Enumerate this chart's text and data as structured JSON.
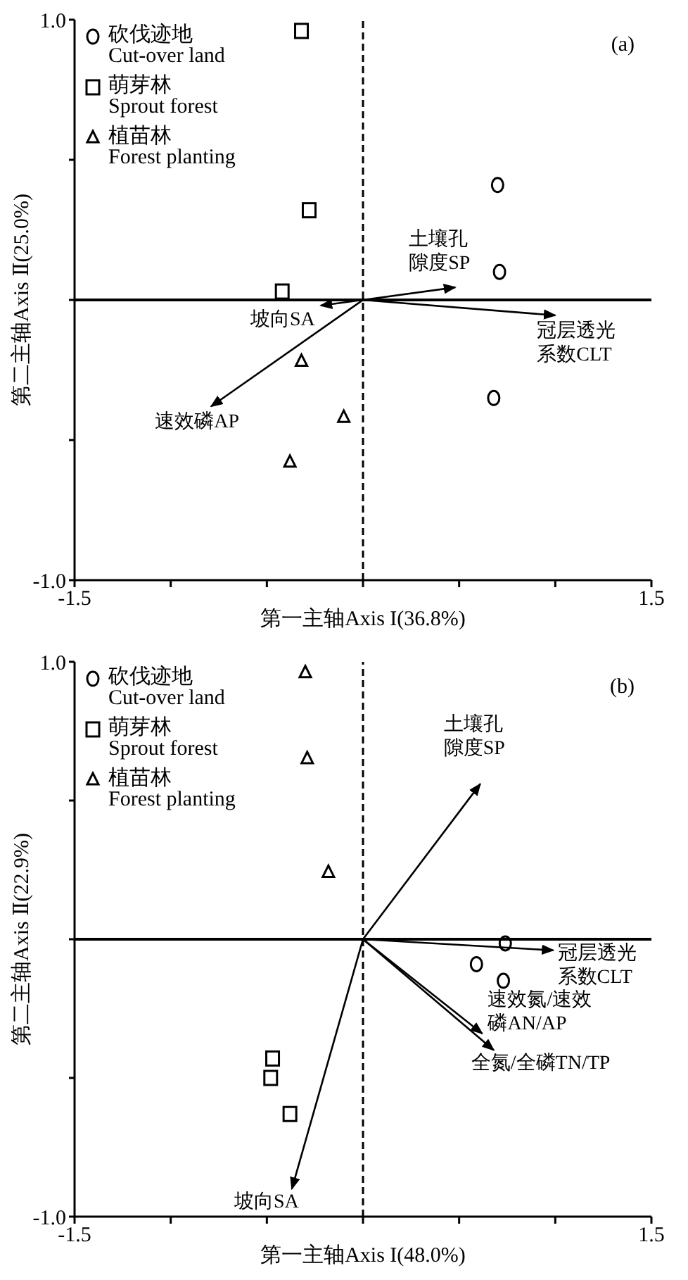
{
  "chart_data": [
    {
      "type": "scatter",
      "xlabel": "第一主轴Axis I(36.8%)",
      "ylabel": "第二主轴Axis Ⅱ(25.0%)",
      "annotations": [
        "(a)"
      ],
      "xlim": [
        -1.5,
        1.5
      ],
      "ylim": [
        -1.0,
        1.0
      ],
      "xticks": [
        {
          "value": -1.5,
          "label": "-1.5"
        },
        {
          "value": -1,
          "label": null
        },
        {
          "value": -0.5,
          "label": null
        },
        {
          "value": 0,
          "label": null
        },
        {
          "value": 0.5,
          "label": null
        },
        {
          "value": 1,
          "label": null
        },
        {
          "value": 1.5,
          "label": "1.5"
        }
      ],
      "yticks": [
        {
          "value": -1,
          "label": "-1.0"
        },
        {
          "value": -0.5,
          "label": null
        },
        {
          "value": 0,
          "label": null
        },
        {
          "value": 0.5,
          "label": null
        },
        {
          "value": 1,
          "label": "1.0"
        }
      ],
      "legend": "top left",
      "ref_lines": [
        {
          "axis": "x",
          "value": 0,
          "line_style": "dashed",
          "color": "#000000"
        },
        {
          "axis": "y",
          "value": 0,
          "line_style": "solid",
          "color": "#000000"
        }
      ],
      "series": [
        {
          "name": "砍伐迹地\nCut-over land",
          "color": "#000000",
          "marker": "circle",
          "x": [
            0.7,
            0.71,
            0.68
          ],
          "values": [
            0.41,
            0.1,
            -0.35
          ]
        },
        {
          "name": "萌芽林\nSprout forest",
          "color": "#000000",
          "marker": "square",
          "x": [
            -0.32,
            -0.28,
            -0.42
          ],
          "values": [
            0.96,
            0.32,
            0.03
          ]
        },
        {
          "name": "植苗林\nForest planting",
          "color": "#000000",
          "marker": "triangle",
          "x": [
            -0.32,
            -0.1,
            -0.38
          ],
          "values": [
            -0.22,
            -0.42,
            -0.58
          ]
        },
        {
          "type": "line",
          "name": "土壤孔隙度SP",
          "color": "#000000",
          "x": [
            0,
            0.48
          ],
          "values": [
            0,
            0.045
          ]
        },
        {
          "type": "line",
          "name": "冠层透光系数CLT",
          "color": "#000000",
          "x": [
            0,
            1.0
          ],
          "values": [
            0,
            -0.055
          ]
        },
        {
          "type": "line",
          "name": "坡向SA",
          "color": "#000000",
          "x": [
            0,
            -0.22
          ],
          "values": [
            0,
            -0.02
          ]
        },
        {
          "type": "line",
          "name": "速效磷AP",
          "color": "#000000",
          "x": [
            0,
            -0.79
          ],
          "values": [
            0,
            -0.38
          ]
        }
      ]
    },
    {
      "type": "scatter",
      "xlabel": "第一主轴Axis I(48.0%)",
      "ylabel": "第二主轴Axis Ⅱ(22.9%)",
      "annotations": [
        "(b)"
      ],
      "xlim": [
        -1.5,
        1.5
      ],
      "ylim": [
        -1.0,
        1.0
      ],
      "xticks": [
        {
          "value": -1.5,
          "label": "-1.5"
        },
        {
          "value": -1,
          "label": null
        },
        {
          "value": -0.5,
          "label": null
        },
        {
          "value": 0,
          "label": null
        },
        {
          "value": 0.5,
          "label": null
        },
        {
          "value": 1,
          "label": null
        },
        {
          "value": 1.5,
          "label": "1.5"
        }
      ],
      "yticks": [
        {
          "value": -1,
          "label": "-1.0"
        },
        {
          "value": -0.5,
          "label": null
        },
        {
          "value": 0,
          "label": null
        },
        {
          "value": 0.5,
          "label": null
        },
        {
          "value": 1,
          "label": "1.0"
        }
      ],
      "legend": "top left",
      "ref_lines": [
        {
          "axis": "x",
          "value": 0,
          "line_style": "dashed",
          "color": "#000000"
        },
        {
          "axis": "y",
          "value": 0,
          "line_style": "solid",
          "color": "#000000"
        }
      ],
      "series": [
        {
          "name": "砍伐迹地\nCut-over land",
          "color": "#000000",
          "marker": "circle",
          "x": [
            0.74,
            0.59,
            0.73
          ],
          "values": [
            -0.015,
            -0.09,
            -0.15
          ]
        },
        {
          "name": "萌芽林\nSprout forest",
          "color": "#000000",
          "marker": "square",
          "x": [
            -0.47,
            -0.48,
            -0.38
          ],
          "values": [
            -0.43,
            -0.5,
            -0.63
          ]
        },
        {
          "name": "植苗林\nForest planting",
          "color": "#000000",
          "marker": "triangle",
          "x": [
            -0.3,
            -0.29,
            -0.18
          ],
          "values": [
            0.96,
            0.65,
            0.24
          ]
        },
        {
          "type": "line",
          "name": "土壤孔隙度SP",
          "color": "#000000",
          "x": [
            0,
            0.61
          ],
          "values": [
            0,
            0.56
          ]
        },
        {
          "type": "line",
          "name": "冠层透光系数CLT",
          "color": "#000000",
          "x": [
            0,
            0.99
          ],
          "values": [
            0,
            -0.04
          ]
        },
        {
          "type": "line",
          "name": "速效氮/速效磷AN/AP",
          "color": "#000000",
          "x": [
            0,
            0.62
          ],
          "values": [
            0,
            -0.34
          ]
        },
        {
          "type": "line",
          "name": "全氮/全磷TN/TP",
          "color": "#000000",
          "x": [
            0,
            0.68
          ],
          "values": [
            0,
            -0.4
          ]
        },
        {
          "type": "line",
          "name": "坡向SA",
          "color": "#000000",
          "x": [
            0,
            -0.37
          ],
          "values": [
            0,
            -0.9
          ]
        }
      ]
    }
  ]
}
